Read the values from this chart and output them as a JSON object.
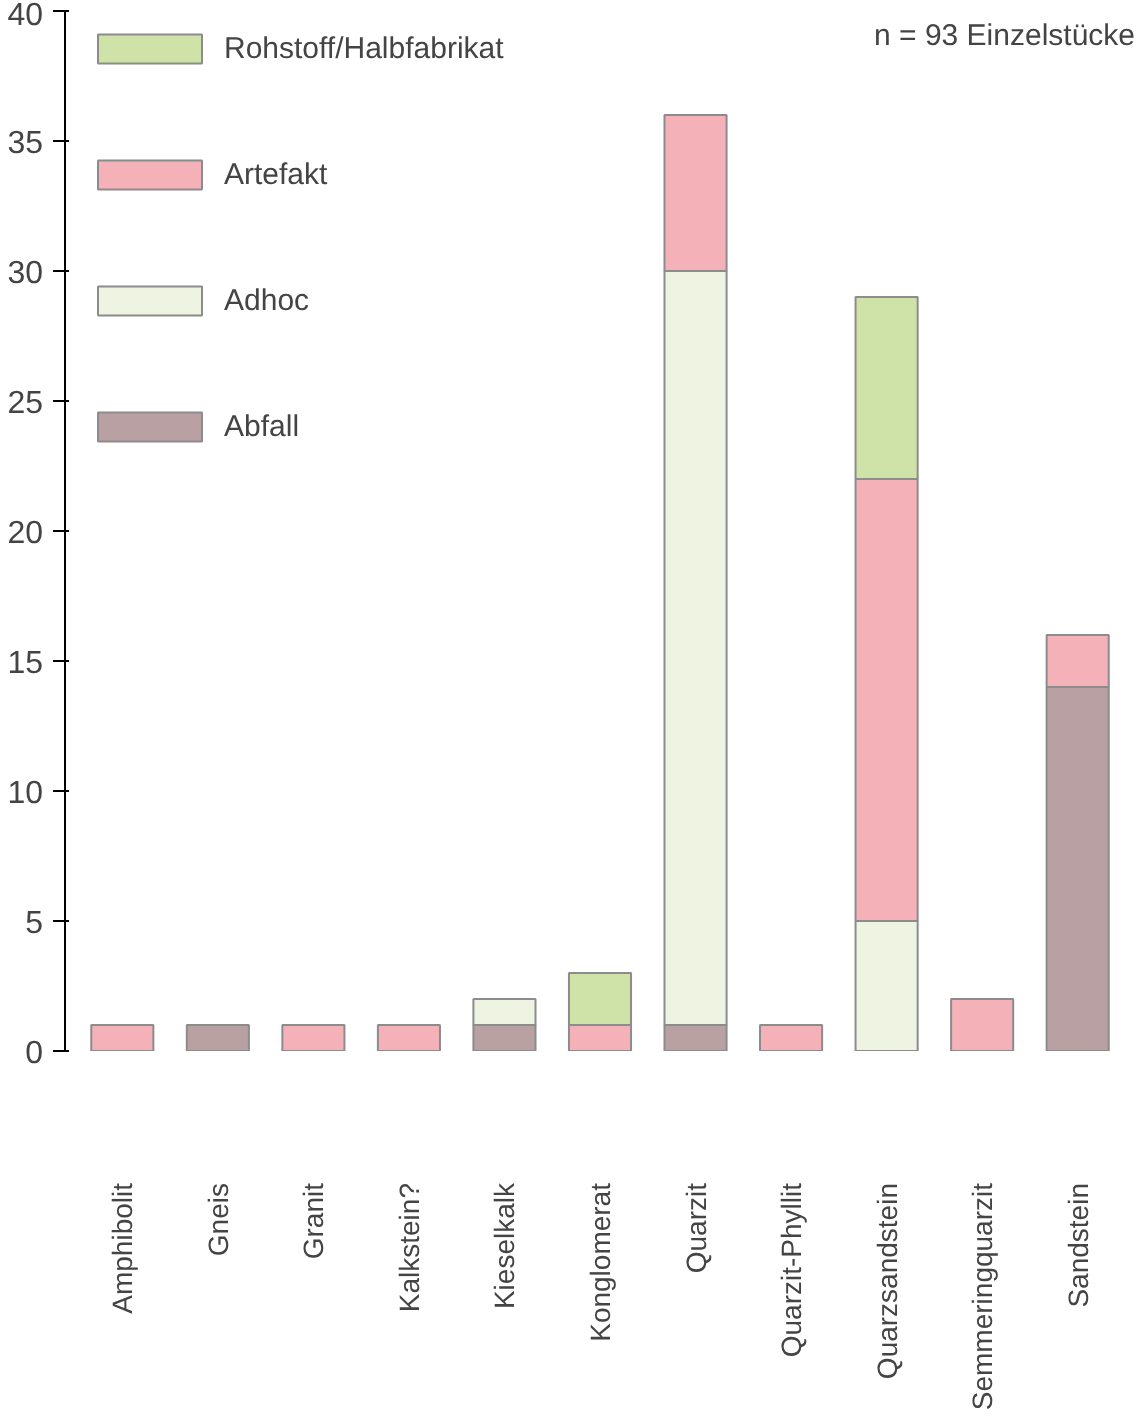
{
  "chart_data": {
    "type": "bar",
    "stacked": true,
    "categories": [
      "Amphibolit",
      "Gneis",
      "Granit",
      "Kalkstein?",
      "Kieselkalk",
      "Konglomerat",
      "Quarzit",
      "Quarzit-Phyllit",
      "Quarzsandstein",
      "Semmeringquarzit",
      "Sandstein"
    ],
    "series": [
      {
        "name": "Abfall",
        "color": "#b9a0a2",
        "values": [
          0,
          1,
          0,
          0,
          1,
          0,
          1,
          0,
          0,
          0,
          14
        ]
      },
      {
        "name": "Adhoc",
        "color": "#eef3e2",
        "values": [
          0,
          0,
          0,
          0,
          1,
          0,
          29,
          0,
          5,
          0,
          0
        ]
      },
      {
        "name": "Artefakt",
        "color": "#f4b1b8",
        "values": [
          1,
          0,
          1,
          1,
          0,
          1,
          6,
          1,
          17,
          2,
          2
        ]
      },
      {
        "name": "Rohstoff/Halbfabrikat",
        "color": "#cfe3a8",
        "values": [
          0,
          0,
          0,
          0,
          0,
          2,
          0,
          0,
          7,
          0,
          0
        ]
      }
    ],
    "ylim": [
      0,
      40
    ],
    "yticks": [
      0,
      5,
      10,
      15,
      20,
      25,
      30,
      35,
      40
    ],
    "grid": false,
    "legend": "top left",
    "annotations": [
      "n = 93 Einzelstücke"
    ]
  }
}
